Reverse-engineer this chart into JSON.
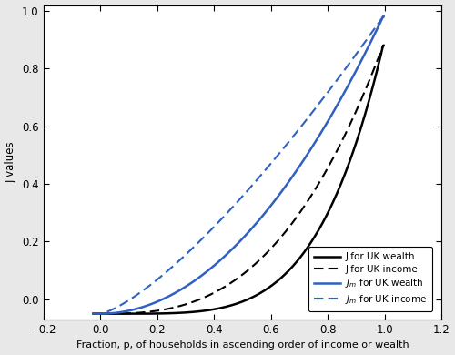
{
  "title": "",
  "xlabel": "Fraction, p, of households in ascending order of income or wealth",
  "ylabel": "J values",
  "xlim": [
    -0.2,
    1.2
  ],
  "ylim": [
    -0.07,
    1.02
  ],
  "xticks": [
    -0.2,
    0.0,
    0.2,
    0.4,
    0.6,
    0.8,
    1.0,
    1.2
  ],
  "yticks": [
    0.0,
    0.2,
    0.4,
    0.6,
    0.8,
    1.0
  ],
  "legend_labels": [
    "J for UK wealth",
    "J for UK income",
    "J$_m$ for UK wealth",
    "J$_m$ for UK income"
  ],
  "background_color": "#e8e8e8",
  "plot_bg_color": "#ffffff",
  "curve_params": {
    "j_wealth_power": 4.2,
    "j_income_power": 2.5,
    "jm_wealth_power": 2.0,
    "jm_income_power": 1.35,
    "start_p": -0.02,
    "start_y": -0.05,
    "end_p": 0.995,
    "end_y": 1.0
  }
}
